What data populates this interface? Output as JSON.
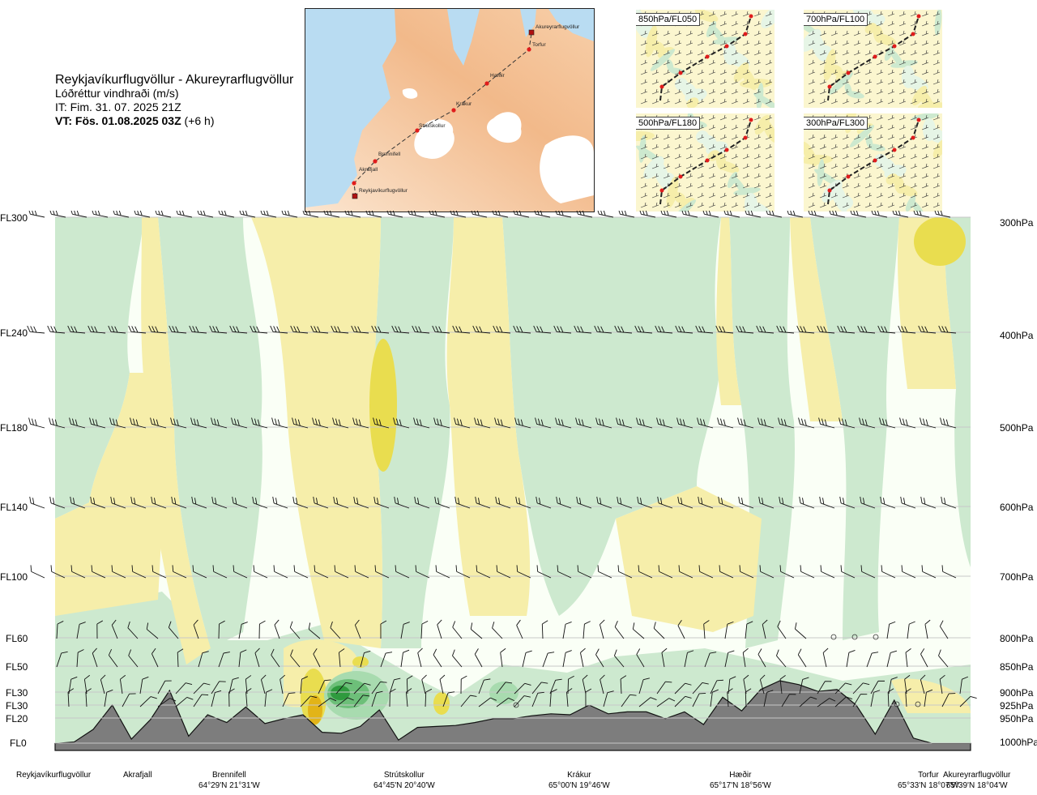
{
  "title": {
    "route": "Reykjavíkurflugvöllur - Akureyrarflugvöllur",
    "subtitle": "Lóðréttur vindhraði (m/s)",
    "issue_time": "IT: Fim. 31. 07. 2025 21Z",
    "valid_time": "VT: Fös. 01.08.2025 03Z",
    "valid_offset": "(+6 h)"
  },
  "map": {
    "waypoints": [
      {
        "name": "Akureyrarflugvöllur",
        "type": "airport"
      },
      {
        "name": "Torfur",
        "type": "waypoint"
      },
      {
        "name": "Hæðir",
        "type": "waypoint"
      },
      {
        "name": "Krákur",
        "type": "waypoint"
      },
      {
        "name": "Strútskollur",
        "type": "waypoint"
      },
      {
        "name": "Brennifell",
        "type": "waypoint"
      },
      {
        "name": "Akrafjall",
        "type": "waypoint"
      },
      {
        "name": "Reykjavíkurflugvöllur",
        "type": "airport"
      }
    ]
  },
  "mini_maps": [
    {
      "label": "850hPa/FL050"
    },
    {
      "label": "700hPa/FL100"
    },
    {
      "label": "500hPa/FL180"
    },
    {
      "label": "300hPa/FL300"
    }
  ],
  "chart_data": {
    "type": "heatmap",
    "title": "Lóðréttur vindhraði (m/s)",
    "left_axis_labels": [
      "FL300",
      "FL240",
      "FL180",
      "FL140",
      "FL100",
      "FL60",
      "FL50",
      "FL30",
      "FL30",
      "FL20",
      "FL0"
    ],
    "right_axis_labels": [
      "300hPa",
      "400hPa",
      "500hPa",
      "600hPa",
      "700hPa",
      "800hPa",
      "850hPa",
      "900hPa",
      "925hPa",
      "950hPa",
      "1000hPa"
    ],
    "pressure_levels_hpa": [
      300,
      400,
      500,
      600,
      700,
      800,
      850,
      900,
      925,
      950,
      1000
    ],
    "bottom_locations": [
      {
        "name": "Reykjavíkurflugvöllur",
        "coord": ""
      },
      {
        "name": "Akrafjall",
        "coord": ""
      },
      {
        "name": "Brennifell",
        "coord": "64°29'N 21°31'W"
      },
      {
        "name": "Strútskollur",
        "coord": "64°45'N 20°40'W"
      },
      {
        "name": "Krákur",
        "coord": "65°00'N 19°46'W"
      },
      {
        "name": "Hæðir",
        "coord": "65°17'N 18°56'W"
      },
      {
        "name": "Torfur",
        "coord": "65°33'N 18°07'W"
      },
      {
        "name": "Akureyrarflugvöllur",
        "coord": "65°39'N 18°04'W"
      }
    ],
    "legend": "none",
    "grid": true,
    "colors": {
      "ascent_light": "#cde9cf",
      "ascent_mid": "#8ccf96",
      "ascent_strong": "#2f9a3e",
      "descent_light": "#f6eeaa",
      "descent_mid": "#e9dd4f",
      "descent_strong": "#e2b418",
      "neutral": "#fafff6",
      "terrain": "#7d7d7d"
    },
    "terrain_profile_m": [
      5,
      20,
      150,
      400,
      50,
      250,
      550,
      80,
      300,
      220,
      380,
      210,
      260,
      300,
      120,
      110,
      180,
      350,
      40,
      170,
      180,
      190,
      220,
      260,
      260,
      290,
      310,
      300,
      400,
      310,
      330,
      330,
      260,
      330,
      200,
      480,
      340,
      560,
      650,
      610,
      540,
      560,
      400,
      100,
      450,
      60,
      5,
      5,
      5
    ]
  }
}
